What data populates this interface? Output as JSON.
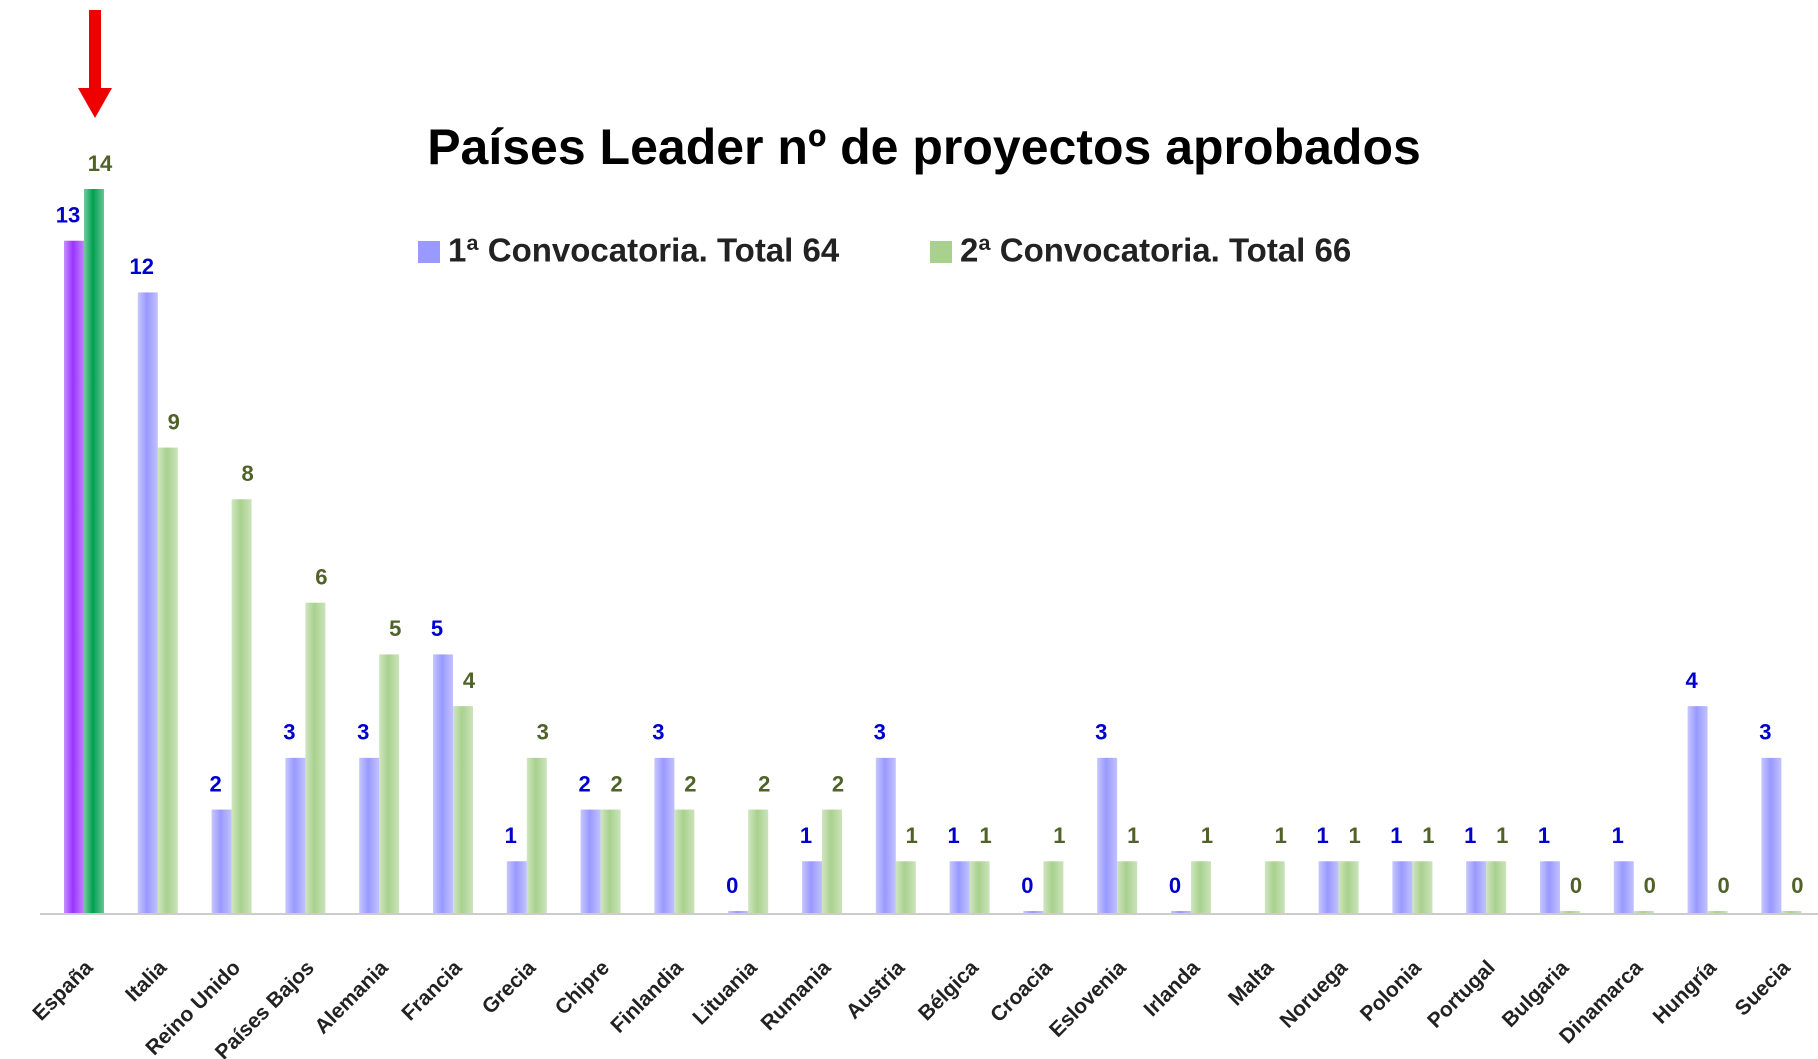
{
  "chart_data": {
    "type": "bar",
    "title": "Países Leader nº de proyectos aprobados",
    "categories": [
      "España",
      "Italia",
      "Reino Unido",
      "Países Bajos",
      "Alemania",
      "Francia",
      "Grecia",
      "Chipre",
      "Finlandia",
      "Lituania",
      "Rumania",
      "Austria",
      "Bélgica",
      "Croacia",
      "Eslovenia",
      "Irlanda",
      "Malta",
      "Noruega",
      "Polonia",
      "Portugal",
      "Bulgaria",
      "Dinamarca",
      "Hungría",
      "Suecia"
    ],
    "series": [
      {
        "name": "1ª Convocatoria. Total 64",
        "color": "#9999ff",
        "label_color": "#0000cc",
        "highlight_color": "#9933ff",
        "values": [
          13,
          12,
          2,
          3,
          3,
          5,
          1,
          2,
          3,
          0,
          1,
          3,
          1,
          0,
          3,
          0,
          null,
          1,
          1,
          1,
          1,
          1,
          4,
          3
        ]
      },
      {
        "name": "2ª Convocatoria. Total 66",
        "color": "#a9d18e",
        "label_color": "#4f6228",
        "highlight_color": "#00a050",
        "values": [
          14,
          9,
          8,
          6,
          5,
          4,
          3,
          2,
          2,
          2,
          2,
          1,
          1,
          1,
          1,
          1,
          1,
          1,
          1,
          1,
          0,
          0,
          0,
          0
        ]
      }
    ],
    "highlight_index": 0,
    "ylim": [
      0,
      14
    ],
    "legend": "top"
  }
}
